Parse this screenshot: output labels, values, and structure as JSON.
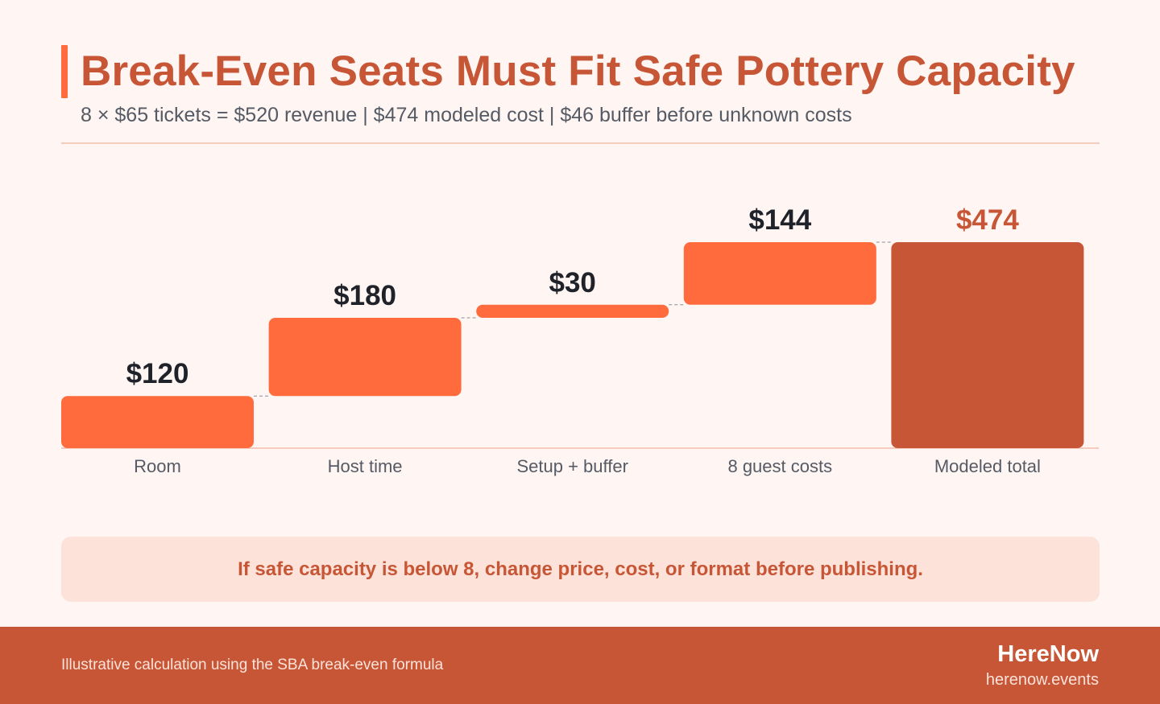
{
  "header": {
    "title": "Break-Even Seats Must Fit Safe Pottery Capacity",
    "subtitle": "8 × $65 tickets = $520 revenue | $474 modeled cost | $46 buffer before unknown costs"
  },
  "colors": {
    "accent": "#ff6b3d",
    "total": "#c75636",
    "label_dark": "#1f2229",
    "label_total": "#c75636",
    "background": "#fff6f3"
  },
  "chart_data": {
    "type": "bar",
    "subtype": "waterfall",
    "categories": [
      "Room",
      "Host time",
      "Setup + buffer",
      "8 guest costs",
      "Modeled total"
    ],
    "values": [
      120,
      180,
      30,
      144,
      474
    ],
    "value_labels": [
      "$120",
      "$180",
      "$30",
      "$144",
      "$474"
    ],
    "is_total": [
      false,
      false,
      false,
      false,
      true
    ],
    "ylim": [
      0,
      474
    ],
    "grid": false,
    "legend": "none"
  },
  "note": {
    "text": "If safe capacity is below 8, change price, cost, or format before publishing."
  },
  "footer": {
    "source": "Illustrative calculation using the SBA break-even formula",
    "brand": "HereNow",
    "url": "herenow.events"
  }
}
